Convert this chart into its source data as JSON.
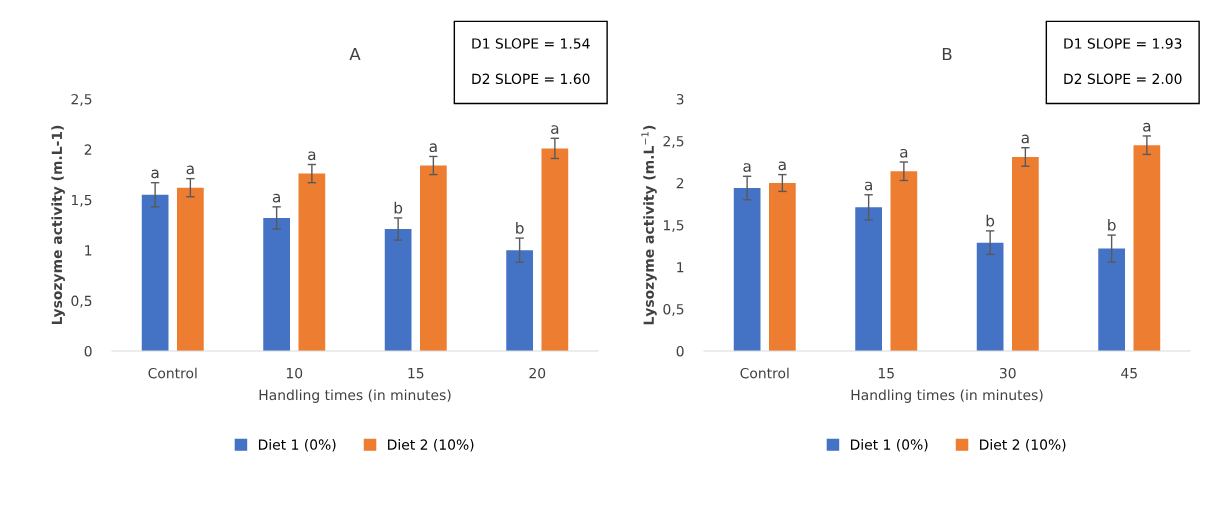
{
  "chart_data": [
    {
      "type": "bar",
      "title": "A",
      "xlabel": "Handling times (in minutes)",
      "ylabel": "Lysozyme activity (m.L-1)",
      "categories": [
        "Control",
        "10",
        "15",
        "20"
      ],
      "series": [
        {
          "name": "Diet 1 (0%)",
          "color": "#4472c4",
          "values": [
            1.55,
            1.32,
            1.21,
            1.0
          ],
          "errors": [
            0.12,
            0.11,
            0.11,
            0.12
          ],
          "value_labels": [
            "a",
            "a",
            "b",
            "b"
          ]
        },
        {
          "name": "Diet 2 (10%)",
          "color": "#ed7d31",
          "values": [
            1.62,
            1.76,
            1.84,
            2.01
          ],
          "errors": [
            0.09,
            0.09,
            0.09,
            0.1
          ],
          "value_labels": [
            "a",
            "a",
            "a",
            "a"
          ]
        }
      ],
      "ylim": [
        0,
        2.5
      ],
      "yticks": [
        0,
        {
          "value": 0.5,
          "label": "0,5"
        },
        1,
        {
          "value": 1.5,
          "label": "1,5"
        },
        2,
        {
          "value": 2.5,
          "label": "2,5"
        }
      ],
      "annotations": [
        "D1 SLOPE = 1.54",
        "D2 SLOPE = 1.60"
      ],
      "legend": "bottom"
    },
    {
      "type": "bar",
      "title": "B",
      "xlabel": "Handling times (in minutes)",
      "ylabel": "Lysozyme activity (m.L$^{−1}$)",
      "categories": [
        "Control",
        "15",
        "30",
        "45"
      ],
      "series": [
        {
          "name": "Diet 1 (0%)",
          "color": "#4472c4",
          "values": [
            1.94,
            1.71,
            1.29,
            1.22
          ],
          "errors": [
            0.14,
            0.15,
            0.14,
            0.16
          ],
          "value_labels": [
            "a",
            "a",
            "b",
            "b"
          ]
        },
        {
          "name": "Diet 2 (10%)",
          "color": "#ed7d31",
          "values": [
            2.0,
            2.14,
            2.31,
            2.45
          ],
          "errors": [
            0.1,
            0.11,
            0.11,
            0.11
          ],
          "value_labels": [
            "a",
            "a",
            "a",
            "a"
          ]
        }
      ],
      "ylim": [
        0,
        3
      ],
      "yticks": [
        0,
        {
          "value": 0.5,
          "label": "0,5"
        },
        1,
        {
          "value": 1.5,
          "label": "1,5"
        },
        2,
        {
          "value": 2.5,
          "label": "2,5"
        },
        3
      ],
      "annotations": [
        "D1 SLOPE = 1.93",
        "D2 SLOPE = 2.00"
      ],
      "legend": "bottom"
    }
  ]
}
